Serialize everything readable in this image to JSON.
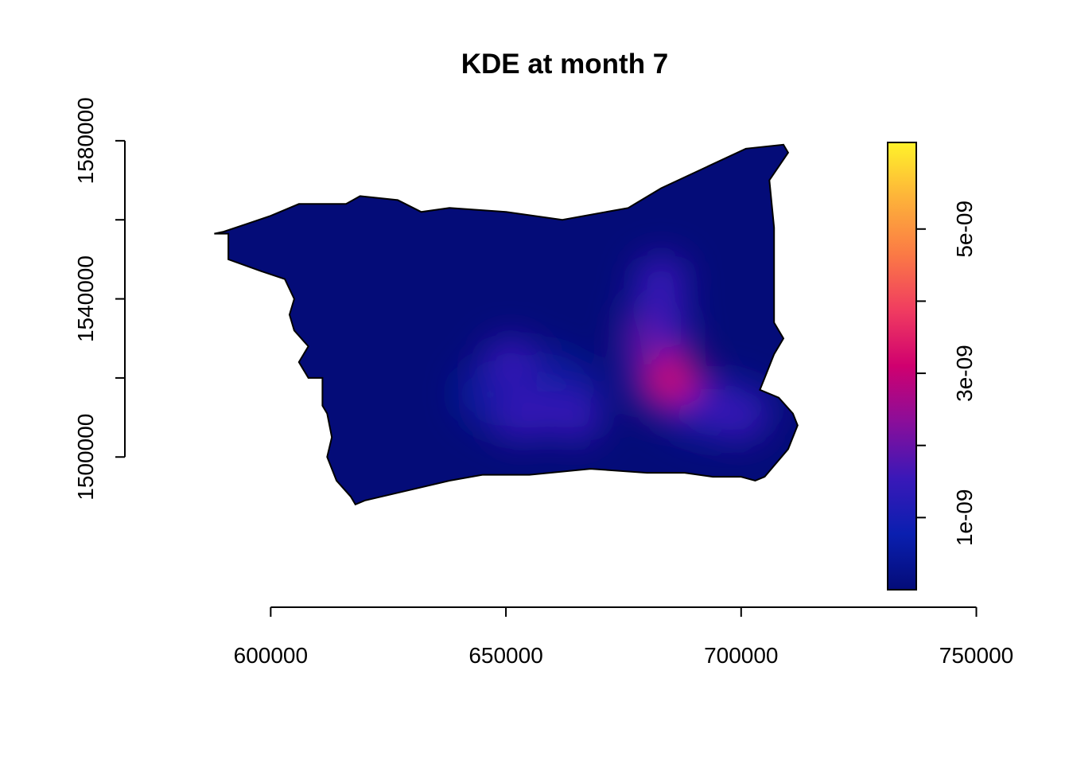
{
  "chart_data": {
    "type": "heatmap",
    "title": "KDE at month 7",
    "xlabel": "",
    "ylabel": "",
    "x_ticks": [
      600000,
      650000,
      700000,
      750000
    ],
    "x_tick_labels": [
      "600000",
      "650000",
      "700000",
      "750000"
    ],
    "y_ticks": [
      1500000,
      1540000,
      1580000
    ],
    "y_tick_labels": [
      "1500000",
      "1540000",
      "1580000"
    ],
    "xlim": [
      569000,
      756000
    ],
    "ylim": [
      1462000,
      1584000
    ],
    "colorbar": {
      "palette": "plasma-like (navy → blue → purple → magenta → orange → yellow)",
      "range": [
        0,
        6.2e-09
      ],
      "ticks": [
        1e-09,
        2e-09,
        3e-09,
        4e-09,
        5e-09
      ],
      "tick_labels": [
        "1e-09",
        "",
        "3e-09",
        "",
        "5e-09"
      ],
      "colors": [
        "#040c78",
        "#0a1fb0",
        "#3a18b8",
        "#8a0e9a",
        "#d0006f",
        "#f03c60",
        "#fb7a45",
        "#fdb23a",
        "#fff22a"
      ]
    },
    "region_boundary": [
      [
        588,
        1556.5
      ],
      [
        591,
        1556.5
      ],
      [
        591,
        1550
      ],
      [
        598,
        1547
      ],
      [
        603,
        1545
      ],
      [
        605,
        1540
      ],
      [
        604,
        1536
      ],
      [
        605,
        1532
      ],
      [
        608,
        1528
      ],
      [
        606,
        1524
      ],
      [
        608,
        1520
      ],
      [
        611,
        1520
      ],
      [
        611,
        1513
      ],
      [
        612,
        1511
      ],
      [
        613,
        1505
      ],
      [
        612,
        1500
      ],
      [
        614,
        1494
      ],
      [
        617,
        1490
      ],
      [
        618,
        1488
      ],
      [
        620,
        1489
      ],
      [
        638,
        1494
      ],
      [
        645,
        1495.5
      ],
      [
        655,
        1495.5
      ],
      [
        668,
        1497
      ],
      [
        680,
        1496
      ],
      [
        688,
        1496
      ],
      [
        694,
        1495
      ],
      [
        700,
        1495
      ],
      [
        703,
        1494
      ],
      [
        705,
        1495
      ],
      [
        710,
        1502
      ],
      [
        712,
        1508
      ],
      [
        711,
        1511
      ],
      [
        708,
        1515
      ],
      [
        704,
        1517
      ],
      [
        705,
        1520
      ],
      [
        707,
        1526
      ],
      [
        709,
        1530
      ],
      [
        707,
        1534
      ],
      [
        707,
        1545
      ],
      [
        707,
        1558
      ],
      [
        706,
        1570
      ],
      [
        710,
        1577
      ],
      [
        709,
        1579
      ],
      [
        701,
        1578
      ],
      [
        683,
        1568
      ],
      [
        676,
        1563
      ],
      [
        662,
        1560
      ],
      [
        650,
        1562
      ],
      [
        638,
        1563
      ],
      [
        632,
        1562
      ],
      [
        627,
        1565
      ],
      [
        619,
        1566
      ],
      [
        616,
        1564
      ],
      [
        612,
        1564
      ],
      [
        606,
        1564
      ],
      [
        600,
        1561
      ],
      [
        595,
        1559
      ],
      [
        590,
        1557
      ]
    ],
    "density_peaks": [
      {
        "x": 685.5,
        "y": 1519.5,
        "value": 2.9e-09
      },
      {
        "x": 682,
        "y": 1530,
        "value": 2.2e-09
      },
      {
        "x": 683,
        "y": 1545,
        "value": 1.6e-09
      },
      {
        "x": 691,
        "y": 1514,
        "value": 1.8e-09
      },
      {
        "x": 700,
        "y": 1510,
        "value": 1.6e-09
      },
      {
        "x": 651,
        "y": 1524,
        "value": 1.75e-09
      },
      {
        "x": 653,
        "y": 1510,
        "value": 1.5e-09
      },
      {
        "x": 665,
        "y": 1510,
        "value": 1.6e-09
      }
    ],
    "grid": false,
    "legend": "right"
  }
}
